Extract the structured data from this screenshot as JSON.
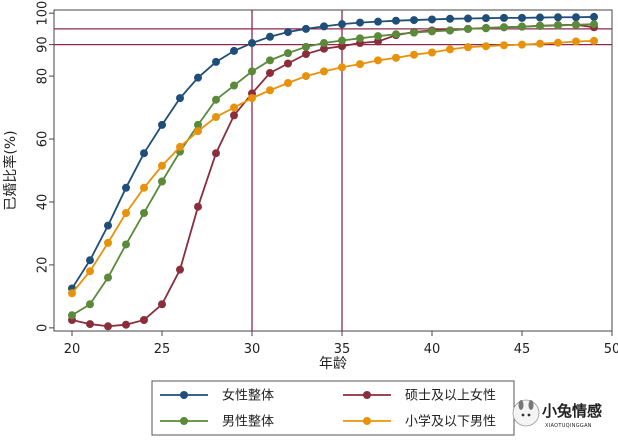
{
  "chart_data": {
    "type": "line",
    "xlabel": "年龄",
    "ylabel": "已婚比率(%)",
    "xlim": [
      19,
      50
    ],
    "ylim": [
      -1,
      101
    ],
    "x_ticks": [
      20,
      25,
      30,
      35,
      40,
      45,
      50
    ],
    "y_ticks": [
      0,
      20,
      40,
      60,
      80,
      90,
      100
    ],
    "grid": false,
    "legend_position": "bottom",
    "reference_lines": {
      "vertical": [
        30,
        35
      ],
      "horizontal": [
        90,
        95
      ],
      "color": "#8b2a4a"
    },
    "x": [
      20,
      21,
      22,
      23,
      24,
      25,
      26,
      27,
      28,
      29,
      30,
      31,
      32,
      33,
      34,
      35,
      36,
      37,
      38,
      39,
      40,
      41,
      42,
      43,
      44,
      45,
      46,
      47,
      48,
      49
    ],
    "series": [
      {
        "name": "女性整体",
        "color": "#1f4e79",
        "values": [
          12.5,
          21.5,
          32.5,
          44.5,
          55.5,
          64.5,
          73,
          79.5,
          84.5,
          88,
          90.5,
          92.5,
          94,
          95,
          95.8,
          96.5,
          97,
          97.3,
          97.6,
          97.8,
          98,
          98.2,
          98.3,
          98.4,
          98.5,
          98.5,
          98.6,
          98.7,
          98.7,
          98.8
        ]
      },
      {
        "name": "硕士及以上女性",
        "color": "#8b2e3c",
        "values": [
          2.5,
          1.2,
          0.5,
          1,
          2.5,
          7.5,
          18.5,
          38.5,
          55.5,
          67.5,
          74.5,
          81,
          84,
          87,
          88.7,
          89.5,
          90.5,
          91,
          93,
          94,
          94.5,
          94.5,
          95,
          95.3,
          95.5,
          95.7,
          96,
          96.2,
          96.3,
          95.5
        ]
      },
      {
        "name": "男性整体",
        "color": "#5a8a3a",
        "values": [
          4,
          7.5,
          16,
          26.5,
          36.5,
          46.5,
          56,
          64.5,
          72.5,
          77,
          81.5,
          85,
          87.3,
          89.3,
          90.5,
          91.3,
          92,
          92.7,
          93.3,
          93.8,
          94.2,
          94.5,
          95,
          95.2,
          95.5,
          95.7,
          95.9,
          96.1,
          96.3,
          96.5
        ]
      },
      {
        "name": "小学及以下男性",
        "color": "#e8920c",
        "values": [
          11,
          18,
          27,
          36.5,
          44.5,
          51.5,
          57.5,
          62.5,
          67,
          70,
          73,
          75.5,
          77.8,
          80,
          81.5,
          82.8,
          83.8,
          85,
          85.8,
          86.8,
          87.5,
          88.5,
          89.2,
          89.5,
          89.8,
          90,
          90.3,
          90.6,
          91,
          91.2
        ]
      }
    ]
  },
  "watermark": {
    "title": "小兔情感",
    "subtitle": "XIAOTUQINGGAN"
  }
}
